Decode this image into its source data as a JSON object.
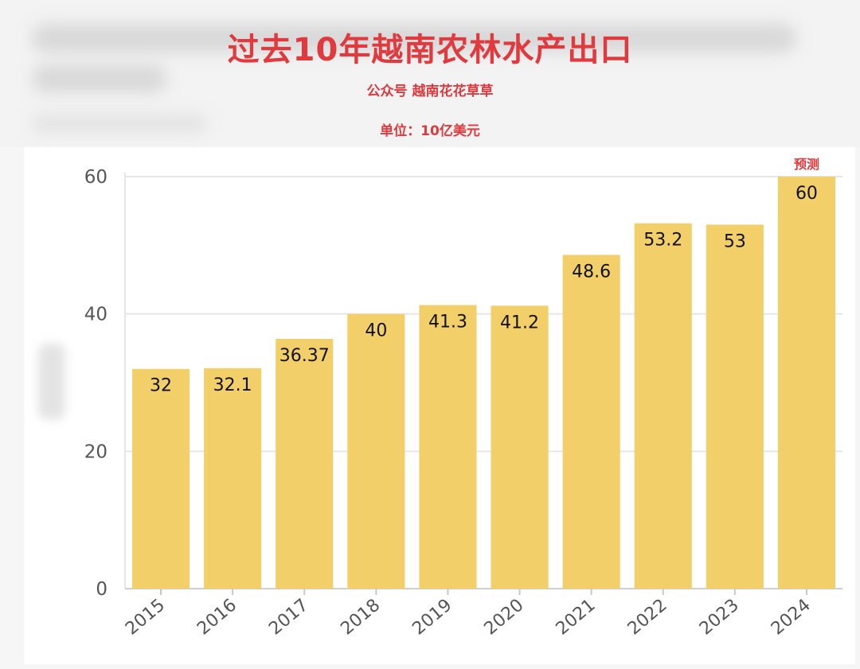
{
  "header": {
    "title": "过去10年越南农林水产出口",
    "subtitle": "公众号 越南花花草草",
    "unit": "单位：10亿美元"
  },
  "colors": {
    "bar": "#f2cf69",
    "title": "#e0393e",
    "grid": "#e6e6e6",
    "axis_text": "#555555"
  },
  "chart_data": {
    "type": "bar",
    "title": "过去10年越南农林水产出口",
    "subtitle": "公众号 越南花花草草",
    "unit": "单位：10亿美元",
    "categories": [
      "2015",
      "2016",
      "2017",
      "2018",
      "2019",
      "2020",
      "2021",
      "2022",
      "2023",
      "2024"
    ],
    "values": [
      32,
      32.1,
      36.37,
      40,
      41.3,
      41.2,
      48.6,
      53.2,
      53,
      60
    ],
    "data_labels": [
      "32",
      "32.1",
      "36.37",
      "40",
      "41.3",
      "41.2",
      "48.6",
      "53.2",
      "53",
      "60"
    ],
    "annotations": [
      {
        "category": "2024",
        "text": "预测"
      }
    ],
    "yticks": [
      0,
      20,
      40,
      60
    ],
    "ylim": [
      0,
      60
    ],
    "grid": true,
    "xlabel": "",
    "ylabel": ""
  }
}
